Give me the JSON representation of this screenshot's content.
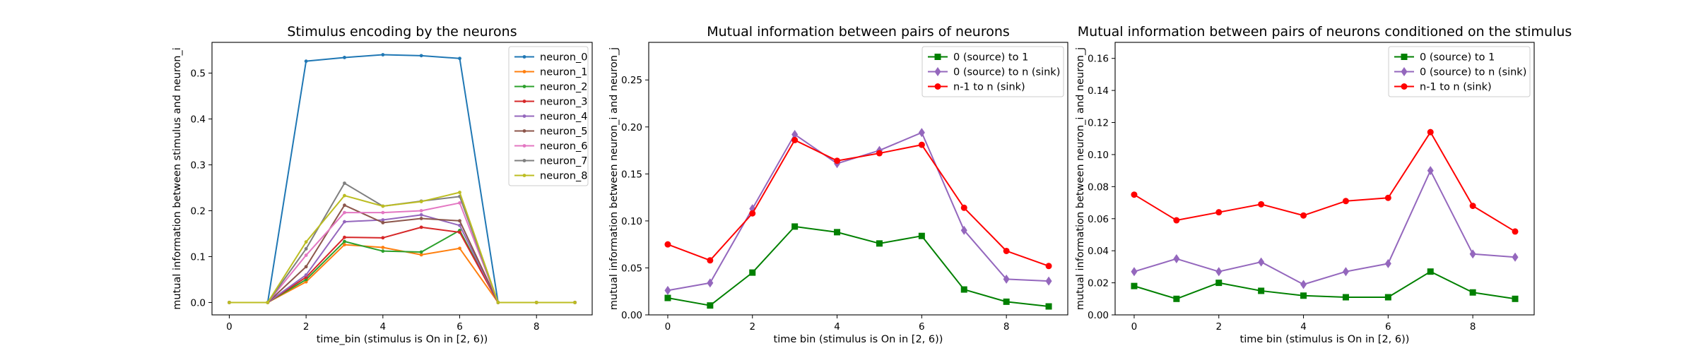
{
  "chart_data": [
    {
      "type": "line",
      "title": "Stimulus encoding by the neurons",
      "xlabel": "time_bin (stimulus is On in [2, 6))",
      "ylabel": "mutual information between stimulus and neuron_i",
      "x": [
        0,
        1,
        2,
        3,
        4,
        5,
        6,
        7,
        8,
        9
      ],
      "xlim": [
        -0.45,
        9.45
      ],
      "ylim": [
        -0.027,
        0.567
      ],
      "xticks": [
        0,
        2,
        4,
        6,
        8
      ],
      "yticks": [
        0.0,
        0.1,
        0.2,
        0.3,
        0.4,
        0.5
      ],
      "tick_decimals": 1,
      "legend": "top-right",
      "grid": false,
      "series": [
        {
          "name": "neuron_0",
          "color": "#1f77b4",
          "marker": "dot",
          "values": [
            0,
            0,
            0.526,
            0.534,
            0.54,
            0.538,
            0.532,
            0,
            0,
            0
          ]
        },
        {
          "name": "neuron_1",
          "color": "#ff7f0e",
          "marker": "dot",
          "values": [
            0,
            0,
            0.045,
            0.126,
            0.12,
            0.104,
            0.118,
            0,
            0,
            0
          ]
        },
        {
          "name": "neuron_2",
          "color": "#2ca02c",
          "marker": "dot",
          "values": [
            0,
            0,
            0.05,
            0.133,
            0.112,
            0.11,
            0.157,
            0,
            0,
            0
          ]
        },
        {
          "name": "neuron_3",
          "color": "#d62728",
          "marker": "dot",
          "values": [
            0,
            0,
            0.055,
            0.142,
            0.141,
            0.164,
            0.153,
            0,
            0,
            0
          ]
        },
        {
          "name": "neuron_4",
          "color": "#9467bd",
          "marker": "dot",
          "values": [
            0,
            0,
            0.06,
            0.176,
            0.18,
            0.191,
            0.168,
            0,
            0,
            0
          ]
        },
        {
          "name": "neuron_5",
          "color": "#8c564b",
          "marker": "dot",
          "values": [
            0,
            0,
            0.078,
            0.212,
            0.174,
            0.183,
            0.178,
            0,
            0,
            0
          ]
        },
        {
          "name": "neuron_6",
          "color": "#e377c2",
          "marker": "dot",
          "values": [
            0,
            0,
            0.103,
            0.196,
            0.196,
            0.2,
            0.217,
            0,
            0,
            0
          ]
        },
        {
          "name": "neuron_7",
          "color": "#7f7f7f",
          "marker": "dot",
          "values": [
            0,
            0,
            0.117,
            0.26,
            0.21,
            0.221,
            0.231,
            0,
            0,
            0
          ]
        },
        {
          "name": "neuron_8",
          "color": "#bcbd22",
          "marker": "dot",
          "values": [
            0,
            0,
            0.132,
            0.233,
            0.21,
            0.22,
            0.24,
            0,
            0,
            0
          ]
        }
      ]
    },
    {
      "type": "line",
      "title": "Mutual information between pairs of neurons",
      "xlabel": "time bin (stimulus is On in [2, 6))",
      "ylabel": "mutual information between neuron_i and neuron_j",
      "x": [
        0,
        1,
        2,
        3,
        4,
        5,
        6,
        7,
        8,
        9
      ],
      "xlim": [
        -0.45,
        9.45
      ],
      "ylim": [
        0,
        0.29
      ],
      "xticks": [
        0,
        2,
        4,
        6,
        8
      ],
      "yticks": [
        0.0,
        0.05,
        0.1,
        0.15,
        0.2,
        0.25
      ],
      "tick_decimals": 2,
      "legend": "top-right",
      "grid": false,
      "series": [
        {
          "name": "0 (source) to 1",
          "color": "#008000",
          "marker": "square",
          "values": [
            0.018,
            0.01,
            0.045,
            0.094,
            0.088,
            0.076,
            0.084,
            0.027,
            0.014,
            0.009
          ]
        },
        {
          "name": "0 (source) to n (sink)",
          "color": "#9467bd",
          "marker": "diamond",
          "values": [
            0.026,
            0.034,
            0.113,
            0.192,
            0.161,
            0.175,
            0.194,
            0.09,
            0.038,
            0.036
          ]
        },
        {
          "name": "n-1 to n (sink)",
          "color": "#ff0000",
          "marker": "dot",
          "values": [
            0.075,
            0.058,
            0.108,
            0.186,
            0.164,
            0.172,
            0.181,
            0.114,
            0.068,
            0.052
          ]
        }
      ]
    },
    {
      "type": "line",
      "title": "Mutual information between pairs of neurons conditioned on the stimulus",
      "xlabel": "time bin (stimulus is On in [2, 6))",
      "ylabel": "mutual information between neuron_i and neuron_j",
      "x": [
        0,
        1,
        2,
        3,
        4,
        5,
        6,
        7,
        8,
        9
      ],
      "xlim": [
        -0.45,
        9.45
      ],
      "ylim": [
        0,
        0.17
      ],
      "xticks": [
        0,
        2,
        4,
        6,
        8
      ],
      "yticks": [
        0.0,
        0.02,
        0.04,
        0.06,
        0.08,
        0.1,
        0.12,
        0.14,
        0.16
      ],
      "tick_decimals": 2,
      "legend": "top-right",
      "grid": false,
      "series": [
        {
          "name": "0 (source) to 1",
          "color": "#008000",
          "marker": "square",
          "values": [
            0.018,
            0.01,
            0.02,
            0.015,
            0.012,
            0.011,
            0.011,
            0.027,
            0.014,
            0.01
          ]
        },
        {
          "name": "0 (source) to n (sink)",
          "color": "#9467bd",
          "marker": "diamond",
          "values": [
            0.027,
            0.035,
            0.027,
            0.033,
            0.019,
            0.027,
            0.032,
            0.09,
            0.038,
            0.036
          ]
        },
        {
          "name": "n-1 to n (sink)",
          "color": "#ff0000",
          "marker": "dot",
          "values": [
            0.075,
            0.059,
            0.064,
            0.069,
            0.062,
            0.071,
            0.073,
            0.114,
            0.068,
            0.052
          ]
        }
      ]
    }
  ]
}
